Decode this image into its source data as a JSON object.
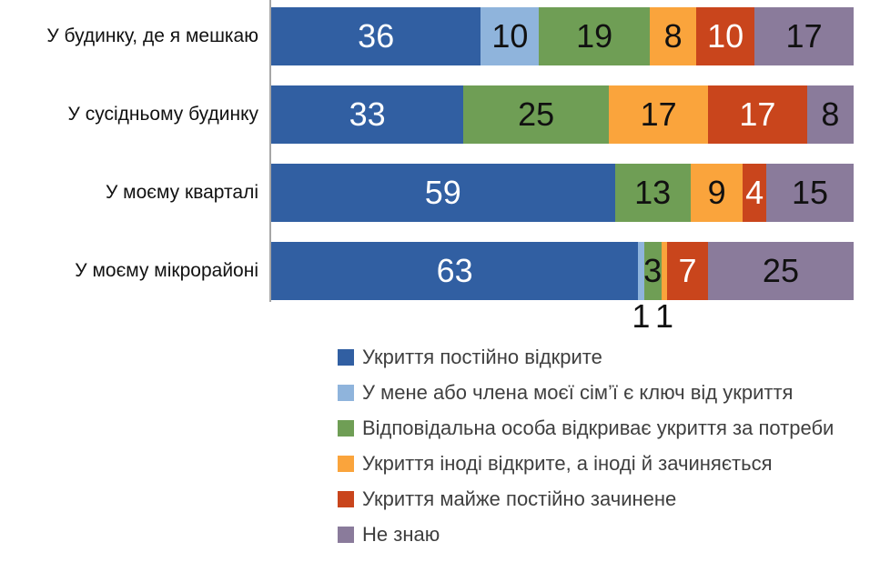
{
  "chart_data": {
    "type": "bar",
    "orientation": "horizontal",
    "stacked": true,
    "unit": "percent",
    "title": "",
    "xlabel": "",
    "ylabel": "",
    "x_range": [
      0,
      100
    ],
    "grid": false,
    "legend_position": "bottom-left",
    "axis_line_color": "#a6a6a6",
    "category_label_color": "#111111",
    "legend_text_color": "#3f3f3f",
    "min_inside_label": 2,
    "categories": [
      "У будинку, де я мешкаю",
      "У сусідньому будинку",
      "У моєму кварталі",
      "У моєму мікрорайоні"
    ],
    "series": [
      {
        "name": "Укриття постійно відкрите",
        "color": "#315fa2",
        "label_color": "#ffffff",
        "values": [
          36,
          33,
          59,
          63
        ]
      },
      {
        "name": "У мене або члена моєї сім’ї є ключ від укриття",
        "color": "#8fb4dc",
        "label_color": "#111111",
        "values": [
          10,
          0,
          0,
          1
        ]
      },
      {
        "name": "Відповідальна особа відкриває укриття за потреби",
        "color": "#6f9e55",
        "label_color": "#111111",
        "values": [
          19,
          25,
          13,
          3
        ]
      },
      {
        "name": "Укриття іноді відкрите, а іноді й зачиняється",
        "color": "#faa43c",
        "label_color": "#111111",
        "values": [
          8,
          17,
          9,
          1
        ]
      },
      {
        "name": "Укриття майже постійно зачинене",
        "color": "#c9451c",
        "label_color": "#ffffff",
        "values": [
          10,
          17,
          4,
          7
        ]
      },
      {
        "name": "Не знаю",
        "color": "#8a7b9b",
        "label_color": "#111111",
        "values": [
          17,
          8,
          15,
          25
        ]
      }
    ]
  }
}
